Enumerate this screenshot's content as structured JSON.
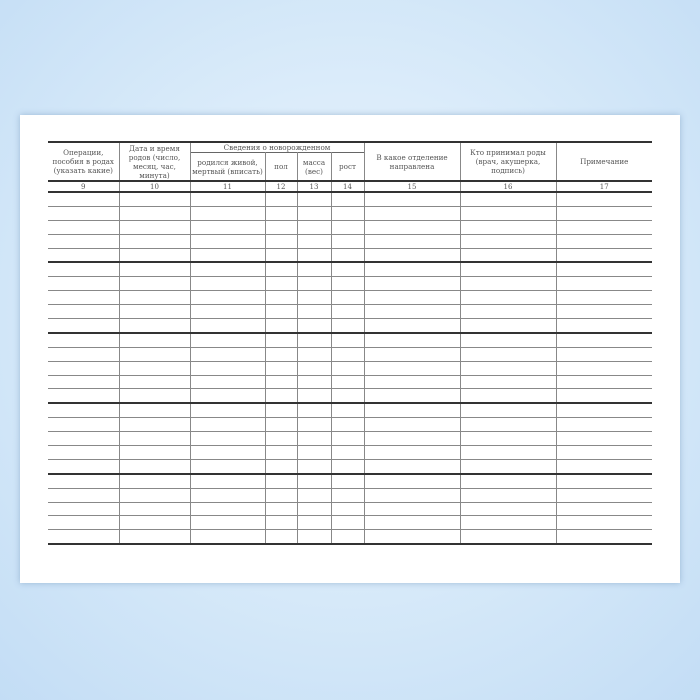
{
  "form": {
    "columns": [
      {
        "label": "Операции, пособия в родах (указать какие)",
        "num": "9"
      },
      {
        "label": "Дата и время родов (число, месяц, час, минута)",
        "num": "10"
      },
      {
        "label": "родился живой, мертвый (вписать)",
        "num": "11"
      },
      {
        "label": "пол",
        "num": "12"
      },
      {
        "label": "масса (вес)",
        "num": "13"
      },
      {
        "label": "рост",
        "num": "14"
      },
      {
        "label": "В какое отделение направлена",
        "num": "15"
      },
      {
        "label": "Кто принимал роды (врач, акушерка, подпись)",
        "num": "16"
      },
      {
        "label": "Примечание",
        "num": "17"
      }
    ],
    "group_header": "Сведения о новорожденном"
  }
}
